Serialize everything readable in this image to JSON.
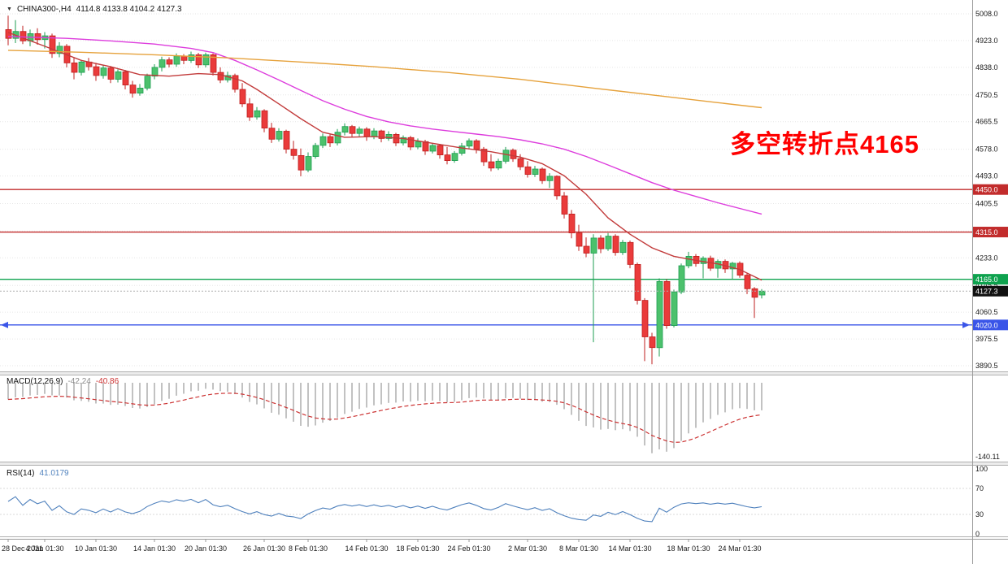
{
  "colors": {
    "candle_up": "#4cc16c",
    "candle_up_border": "#1e9e52",
    "candle_down": "#ea3b3b",
    "candle_down_border": "#bf1f1f",
    "macd_histogram": "#c2c2c2",
    "macd_signal": "#cc3333",
    "rsi_line": "#4f81bd",
    "current_price_badge": "#111111",
    "grid": "#e6e6e6",
    "axis": "#9a9a9a"
  },
  "chart_data": [
    {
      "type": "candlestick",
      "title_marker": "▼",
      "title_symbol": "CHINA300-,H4",
      "title_ohlc": "4114.8 4133.8 4104.2 4127.3",
      "annotation": {
        "text": "多空转折点4165",
        "color": "#ff0000"
      },
      "y_axis": {
        "top_value": 5008.0,
        "bottom_value": 3890.5,
        "tick_values": [
          5008.0,
          4923.0,
          4838.0,
          4750.5,
          4665.5,
          4578.0,
          4493.0,
          4405.5,
          4318.0,
          4233.0,
          4145.5,
          4060.5,
          3975.5,
          3890.5
        ]
      },
      "h_lines": [
        {
          "price": 4450.0,
          "color": "#c22c2c",
          "label": "4450.0",
          "arrows": false
        },
        {
          "price": 4315.0,
          "color": "#c22c2c",
          "label": "4315.0",
          "arrows": false
        },
        {
          "price": 4165.0,
          "color": "#0ea24e",
          "label": "4165.0",
          "arrows": false
        },
        {
          "price": 4020.0,
          "color": "#3a55e8",
          "label": "4020.0",
          "arrows": true
        }
      ],
      "current_price": {
        "value": 4127.3,
        "label": "4127.3"
      },
      "moving_averages": [
        {
          "name": "ma-fast-red",
          "color": "#c23b3b",
          "points": [
            [
              0,
              4949
            ],
            [
              5,
              4905
            ],
            [
              10,
              4860
            ],
            [
              14,
              4840
            ],
            [
              18,
              4815
            ],
            [
              22,
              4810
            ],
            [
              26,
              4818
            ],
            [
              29,
              4815
            ],
            [
              32,
              4795
            ],
            [
              34,
              4768
            ],
            [
              37,
              4722
            ],
            [
              40,
              4675
            ],
            [
              43,
              4632
            ],
            [
              46,
              4616
            ],
            [
              50,
              4618
            ],
            [
              54,
              4612
            ],
            [
              58,
              4597
            ],
            [
              62,
              4582
            ],
            [
              66,
              4570
            ],
            [
              70,
              4553
            ],
            [
              73,
              4532
            ],
            [
              76,
              4494
            ],
            [
              79,
              4435
            ],
            [
              82,
              4360
            ],
            [
              85,
              4308
            ],
            [
              88,
              4265
            ],
            [
              91,
              4238
            ],
            [
              94,
              4225
            ],
            [
              97,
              4214
            ],
            [
              100,
              4196
            ],
            [
              103,
              4162
            ]
          ]
        },
        {
          "name": "ma-mid-magenta",
          "color": "#dd3ddd",
          "points": [
            [
              0,
              4936
            ],
            [
              8,
              4930
            ],
            [
              14,
              4922
            ],
            [
              20,
              4912
            ],
            [
              25,
              4898
            ],
            [
              28,
              4885
            ],
            [
              31,
              4860
            ],
            [
              34,
              4830
            ],
            [
              37,
              4798
            ],
            [
              40,
              4765
            ],
            [
              43,
              4732
            ],
            [
              46,
              4705
            ],
            [
              49,
              4682
            ],
            [
              52,
              4665
            ],
            [
              55,
              4652
            ],
            [
              58,
              4642
            ],
            [
              61,
              4634
            ],
            [
              64,
              4626
            ],
            [
              67,
              4618
            ],
            [
              70,
              4608
            ],
            [
              73,
              4595
            ],
            [
              76,
              4578
            ],
            [
              79,
              4555
            ],
            [
              82,
              4528
            ],
            [
              85,
              4500
            ],
            [
              88,
              4472
            ],
            [
              91,
              4448
            ],
            [
              94,
              4428
            ],
            [
              97,
              4408
            ],
            [
              100,
              4390
            ],
            [
              103,
              4372
            ]
          ]
        },
        {
          "name": "ma-slow-orange",
          "color": "#e6a23c",
          "points": [
            [
              0,
              4892
            ],
            [
              10,
              4886
            ],
            [
              20,
              4878
            ],
            [
              30,
              4868
            ],
            [
              40,
              4855
            ],
            [
              50,
              4840
            ],
            [
              60,
              4822
            ],
            [
              70,
              4800
            ],
            [
              80,
              4772
            ],
            [
              90,
              4745
            ],
            [
              97,
              4726
            ],
            [
              103,
              4710
            ]
          ]
        }
      ],
      "x_axis_labels": [
        {
          "i": 0,
          "text": "28 Dec 2021"
        },
        {
          "i": 5,
          "text": "4 Jan 01:30"
        },
        {
          "i": 12,
          "text": "10 Jan 01:30"
        },
        {
          "i": 20,
          "text": "14 Jan 01:30"
        },
        {
          "i": 27,
          "text": "20 Jan 01:30"
        },
        {
          "i": 35,
          "text": "26 Jan 01:30"
        },
        {
          "i": 41,
          "text": "8 Feb 01:30"
        },
        {
          "i": 49,
          "text": "14 Feb 01:30"
        },
        {
          "i": 56,
          "text": "18 Feb 01:30"
        },
        {
          "i": 63,
          "text": "24 Feb 01:30"
        },
        {
          "i": 71,
          "text": "2 Mar 01:30"
        },
        {
          "i": 78,
          "text": "8 Mar 01:30"
        },
        {
          "i": 85,
          "text": "14 Mar 01:30"
        },
        {
          "i": 93,
          "text": "18 Mar 01:30"
        },
        {
          "i": 100,
          "text": "24 Mar 01:30"
        }
      ],
      "ohlc": [
        [
          4958,
          5002,
          4908,
          4930
        ],
        [
          4930,
          4988,
          4915,
          4952
        ],
        [
          4952,
          4970,
          4912,
          4922
        ],
        [
          4922,
          4958,
          4905,
          4945
        ],
        [
          4945,
          4962,
          4910,
          4926
        ],
        [
          4926,
          4950,
          4898,
          4938
        ],
        [
          4938,
          4945,
          4868,
          4882
        ],
        [
          4882,
          4918,
          4870,
          4905
        ],
        [
          4905,
          4912,
          4838,
          4852
        ],
        [
          4852,
          4870,
          4800,
          4822
        ],
        [
          4822,
          4862,
          4812,
          4855
        ],
        [
          4855,
          4868,
          4828,
          4840
        ],
        [
          4840,
          4852,
          4795,
          4812
        ],
        [
          4812,
          4845,
          4802,
          4836
        ],
        [
          4836,
          4842,
          4788,
          4800
        ],
        [
          4800,
          4832,
          4790,
          4824
        ],
        [
          4824,
          4830,
          4768,
          4782
        ],
        [
          4782,
          4795,
          4742,
          4756
        ],
        [
          4756,
          4785,
          4748,
          4772
        ],
        [
          4772,
          4818,
          4765,
          4810
        ],
        [
          4810,
          4848,
          4800,
          4838
        ],
        [
          4838,
          4872,
          4825,
          4862
        ],
        [
          4862,
          4870,
          4838,
          4848
        ],
        [
          4848,
          4882,
          4840,
          4874
        ],
        [
          4874,
          4880,
          4848,
          4860
        ],
        [
          4860,
          4888,
          4852,
          4878
        ],
        [
          4878,
          4884,
          4836,
          4846
        ],
        [
          4846,
          4885,
          4838,
          4878
        ],
        [
          4878,
          4882,
          4812,
          4822
        ],
        [
          4822,
          4838,
          4788,
          4798
        ],
        [
          4798,
          4824,
          4790,
          4812
        ],
        [
          4812,
          4818,
          4758,
          4768
        ],
        [
          4768,
          4788,
          4712,
          4722
        ],
        [
          4722,
          4740,
          4668,
          4680
        ],
        [
          4680,
          4712,
          4672,
          4700
        ],
        [
          4700,
          4705,
          4632,
          4645
        ],
        [
          4645,
          4662,
          4598,
          4610
        ],
        [
          4610,
          4645,
          4602,
          4635
        ],
        [
          4635,
          4640,
          4565,
          4578
        ],
        [
          4578,
          4605,
          4545,
          4558
        ],
        [
          4558,
          4580,
          4492,
          4512
        ],
        [
          4512,
          4568,
          4505,
          4555
        ],
        [
          4555,
          4598,
          4548,
          4590
        ],
        [
          4590,
          4628,
          4582,
          4618
        ],
        [
          4618,
          4625,
          4585,
          4598
        ],
        [
          4598,
          4642,
          4590,
          4632
        ],
        [
          4632,
          4660,
          4622,
          4650
        ],
        [
          4650,
          4655,
          4615,
          4628
        ],
        [
          4628,
          4650,
          4618,
          4642
        ],
        [
          4642,
          4648,
          4605,
          4618
        ],
        [
          4618,
          4645,
          4610,
          4636
        ],
        [
          4636,
          4640,
          4600,
          4612
        ],
        [
          4612,
          4635,
          4605,
          4625
        ],
        [
          4625,
          4630,
          4588,
          4598
        ],
        [
          4598,
          4622,
          4590,
          4615
        ],
        [
          4615,
          4620,
          4575,
          4585
        ],
        [
          4585,
          4612,
          4578,
          4602
        ],
        [
          4602,
          4608,
          4560,
          4572
        ],
        [
          4572,
          4598,
          4565,
          4590
        ],
        [
          4590,
          4595,
          4548,
          4560
        ],
        [
          4560,
          4585,
          4530,
          4542
        ],
        [
          4542,
          4572,
          4535,
          4565
        ],
        [
          4565,
          4598,
          4558,
          4588
        ],
        [
          4588,
          4612,
          4580,
          4605
        ],
        [
          4605,
          4610,
          4565,
          4578
        ],
        [
          4578,
          4585,
          4525,
          4538
        ],
        [
          4538,
          4562,
          4508,
          4518
        ],
        [
          4518,
          4548,
          4512,
          4540
        ],
        [
          4540,
          4585,
          4532,
          4575
        ],
        [
          4575,
          4580,
          4538,
          4548
        ],
        [
          4548,
          4562,
          4512,
          4522
        ],
        [
          4522,
          4540,
          4488,
          4498
        ],
        [
          4498,
          4525,
          4490,
          4515
        ],
        [
          4515,
          4520,
          4468,
          4478
        ],
        [
          4478,
          4502,
          4455,
          4492
        ],
        [
          4492,
          4495,
          4418,
          4430
        ],
        [
          4430,
          4442,
          4358,
          4372
        ],
        [
          4372,
          4385,
          4295,
          4312
        ],
        [
          4312,
          4338,
          4255,
          4270
        ],
        [
          4270,
          4298,
          4235,
          4248
        ],
        [
          4248,
          4308,
          3965,
          4296
        ],
        [
          4296,
          4305,
          4248,
          4262
        ],
        [
          4262,
          4312,
          4255,
          4302
        ],
        [
          4302,
          4308,
          4240,
          4250
        ],
        [
          4250,
          4290,
          4242,
          4282
        ],
        [
          4282,
          4288,
          4200,
          4212
        ],
        [
          4212,
          4218,
          4085,
          4098
        ],
        [
          4098,
          4105,
          3905,
          3982
        ],
        [
          3982,
          3995,
          3895,
          3948
        ],
        [
          3948,
          4168,
          3920,
          4158
        ],
        [
          4158,
          4165,
          4008,
          4018
        ],
        [
          4018,
          4132,
          4012,
          4125
        ],
        [
          4125,
          4215,
          4118,
          4208
        ],
        [
          4208,
          4252,
          4200,
          4238
        ],
        [
          4238,
          4245,
          4205,
          4215
        ],
        [
          4215,
          4238,
          4168,
          4232
        ],
        [
          4232,
          4240,
          4192,
          4200
        ],
        [
          4200,
          4228,
          4170,
          4222
        ],
        [
          4222,
          4228,
          4185,
          4198
        ],
        [
          4198,
          4220,
          4165,
          4216
        ],
        [
          4216,
          4222,
          4170,
          4178
        ],
        [
          4178,
          4185,
          4118,
          4135
        ],
        [
          4135,
          4140,
          4042,
          4108
        ],
        [
          4114.8,
          4133.8,
          4104.2,
          4127.3
        ]
      ]
    },
    {
      "type": "macd",
      "label": "MACD(12,26,9)",
      "value_main": "-42.24",
      "value_signal": "-40.86",
      "params": [
        12,
        26,
        9
      ],
      "axis_label": "-140.11"
    },
    {
      "type": "rsi",
      "label": "RSI(14)",
      "value": "41.0179",
      "period": 14,
      "levels": [
        70,
        30
      ],
      "axis_labels": [
        100,
        70,
        30,
        0
      ]
    }
  ]
}
